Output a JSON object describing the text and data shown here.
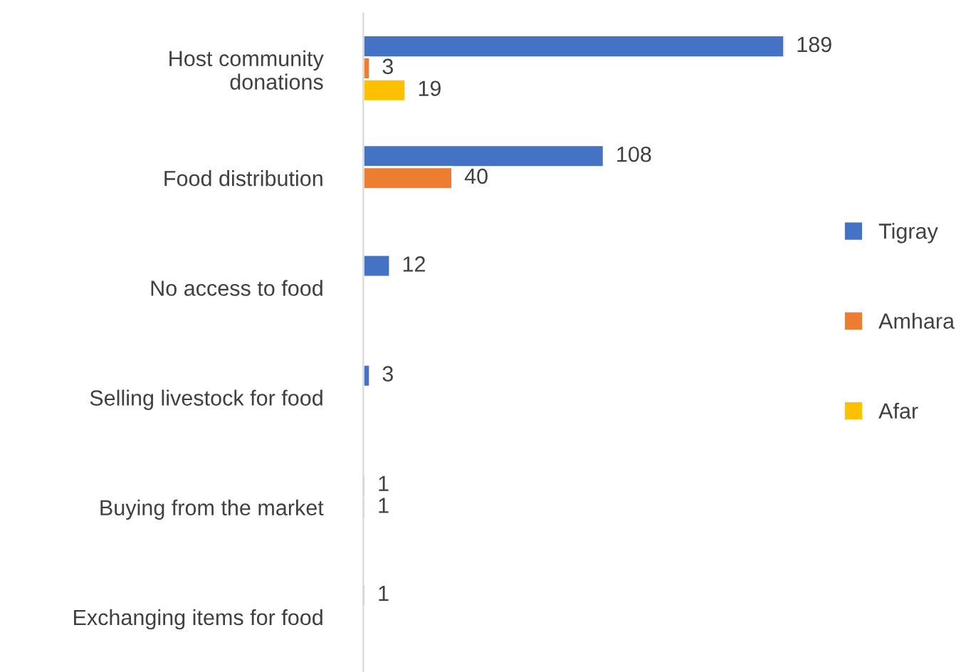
{
  "chart_data": {
    "type": "bar",
    "orientation": "horizontal",
    "categories": [
      "Host community\ndonations",
      "Food distribution",
      "No access to food",
      "Selling livestock for food",
      "Buying from the market",
      "Exchanging items for food"
    ],
    "series": [
      {
        "name": "Tigray",
        "color": "#4472c4",
        "values": [
          189,
          108,
          12,
          3,
          1,
          1
        ]
      },
      {
        "name": "Amhara",
        "color": "#ed7d31",
        "values": [
          3,
          40,
          null,
          null,
          1,
          null
        ]
      },
      {
        "name": "Afar",
        "color": "#ffc000",
        "values": [
          19,
          null,
          null,
          null,
          null,
          null
        ]
      }
    ],
    "data_labels": true,
    "legend": "right",
    "grid": false
  }
}
